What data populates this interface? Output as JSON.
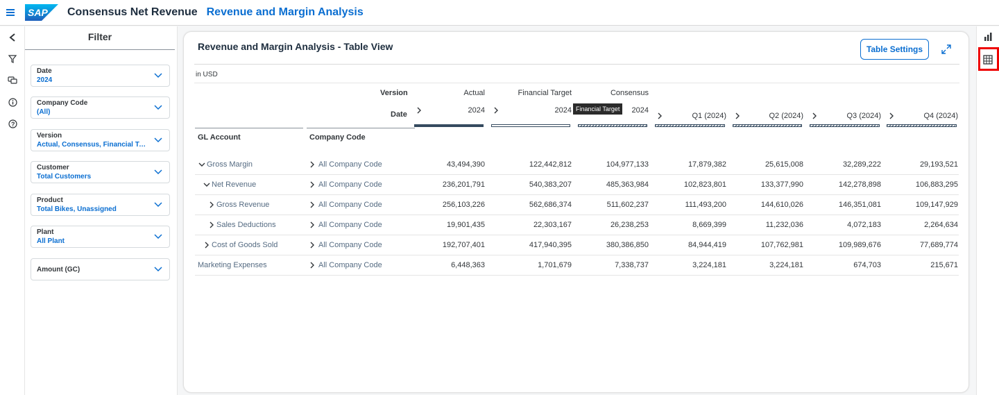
{
  "header": {
    "logo_text": "SAP",
    "app_title": "Consensus Net Revenue",
    "page_title": "Revenue and Margin Analysis"
  },
  "filter": {
    "title": "Filter",
    "fields": [
      {
        "label": "Date",
        "value": "2024"
      },
      {
        "label": "Company Code",
        "value": "(All)"
      },
      {
        "label": "Version",
        "value": "Actual, Consensus, Financial Target"
      },
      {
        "label": "Customer",
        "value": "Total Customers"
      },
      {
        "label": "Product",
        "value": "Total Bikes, Unassigned"
      },
      {
        "label": "Plant",
        "value": "All Plant"
      },
      {
        "label": "Amount (GC)",
        "value": ""
      }
    ]
  },
  "card": {
    "title": "Revenue and Margin Analysis - Table View",
    "table_settings_label": "Table Settings",
    "unit": "in USD"
  },
  "table": {
    "version_label": "Version",
    "date_label": "Date",
    "gl_account_label": "GL Account",
    "company_code_label": "Company Code",
    "version_headers": [
      "Actual",
      "Financial Target",
      "Consensus",
      "",
      "",
      "",
      ""
    ],
    "date_headers": [
      "2024",
      "2024",
      "2024",
      "Q1 (2024)",
      "Q2 (2024)",
      "Q3 (2024)",
      "Q4 (2024)"
    ],
    "rows": [
      {
        "account": "Gross Margin",
        "company": "All Company Code",
        "values": [
          "43,494,390",
          "122,442,812",
          "104,977,133",
          "17,879,382",
          "25,615,008",
          "32,289,222",
          "29,193,521"
        ]
      },
      {
        "account": "Net Revenue",
        "company": "All Company Code",
        "values": [
          "236,201,791",
          "540,383,207",
          "485,363,984",
          "102,823,801",
          "133,377,990",
          "142,278,898",
          "106,883,295"
        ]
      },
      {
        "account": "Gross Revenue",
        "company": "All Company Code",
        "values": [
          "256,103,226",
          "562,686,374",
          "511,602,237",
          "111,493,200",
          "144,610,026",
          "146,351,081",
          "109,147,929"
        ]
      },
      {
        "account": "Sales Deductions",
        "company": "All Company Code",
        "values": [
          "19,901,435",
          "22,303,167",
          "26,238,253",
          "8,669,399",
          "11,232,036",
          "4,072,183",
          "2,264,634"
        ]
      },
      {
        "account": "Cost of Goods Sold",
        "company": "All Company Code",
        "values": [
          "192,707,401",
          "417,940,395",
          "380,386,850",
          "84,944,419",
          "107,762,981",
          "109,989,676",
          "77,689,774"
        ]
      },
      {
        "account": "Marketing Expenses",
        "company": "All Company Code",
        "values": [
          "6,448,363",
          "1,701,679",
          "7,338,737",
          "3,224,181",
          "3,224,181",
          "674,703",
          "215,671"
        ]
      }
    ],
    "tooltip": "Financial Target"
  },
  "colors": {
    "brand_blue": "#0a6ed1",
    "highlight_red": "#ee0000",
    "bar_dark": "#354a5f"
  }
}
